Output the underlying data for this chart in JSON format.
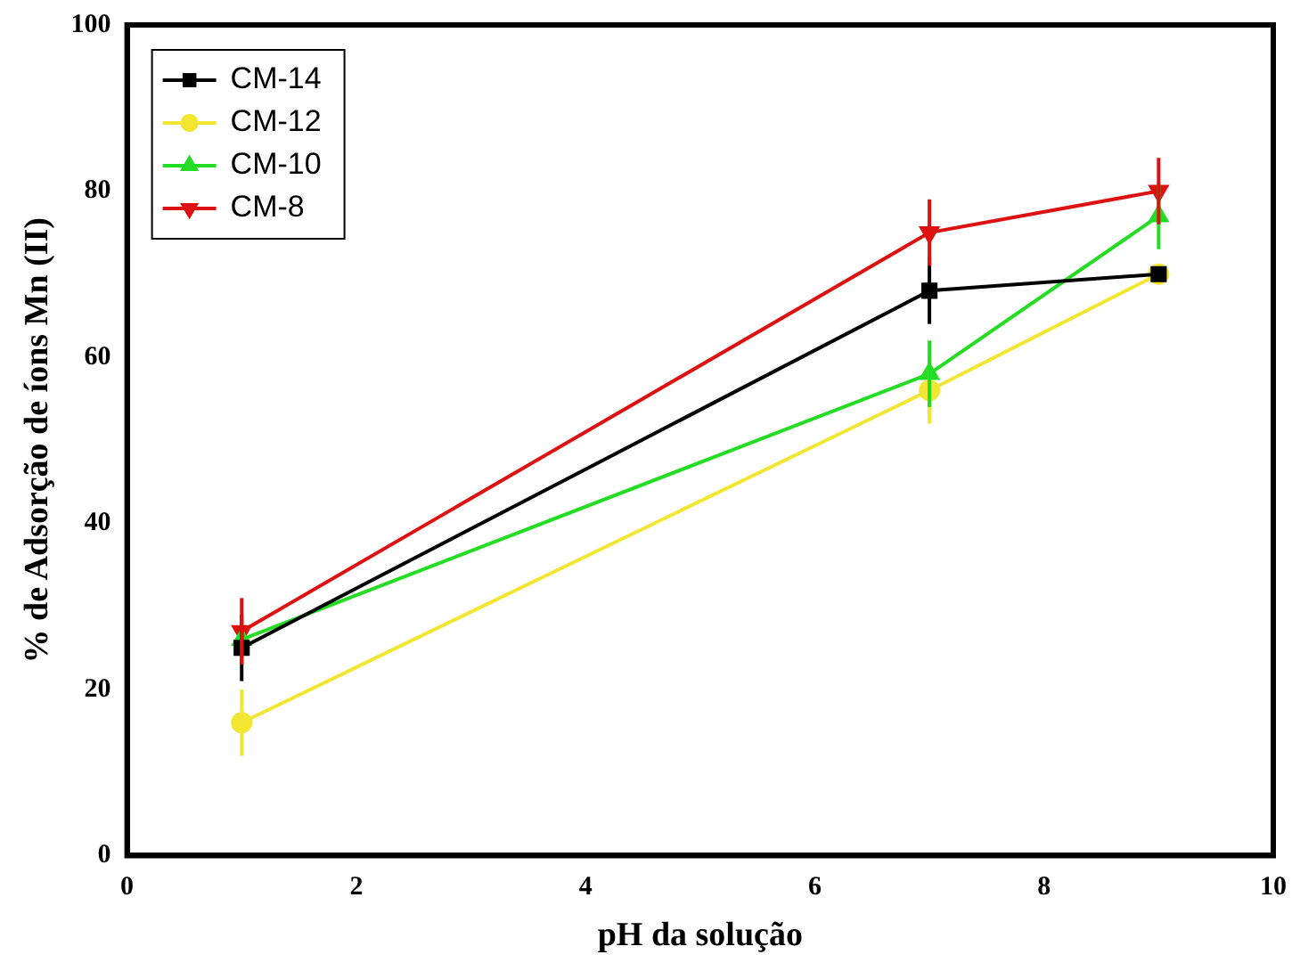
{
  "chart_data": {
    "type": "line",
    "xlabel": "pH da solução",
    "ylabel": "% de Adsorção de íons Mn (II)",
    "x": [
      1,
      7,
      9
    ],
    "xlim": [
      0,
      10
    ],
    "xticks": [
      0,
      2,
      4,
      6,
      8,
      10
    ],
    "ylim": [
      0,
      100
    ],
    "yticks": [
      0,
      20,
      40,
      60,
      80,
      100
    ],
    "grid": false,
    "legend": "top left",
    "line_style": "solid",
    "series": [
      {
        "name": "CM-14",
        "color": "#000000",
        "marker": "square",
        "values": [
          25,
          68,
          70
        ],
        "errors": [
          4,
          4,
          null
        ]
      },
      {
        "name": "CM-12",
        "color": "#f2e630",
        "marker": "circle",
        "values": [
          16,
          56,
          70
        ],
        "errors": [
          4,
          4,
          null
        ]
      },
      {
        "name": "CM-10",
        "color": "#22dd22",
        "marker": "triangle",
        "values": [
          26,
          58,
          77
        ],
        "errors": [
          null,
          4,
          4
        ]
      },
      {
        "name": "CM-8",
        "color": "#dd1111",
        "marker": "triangle-down",
        "values": [
          27,
          75,
          80
        ],
        "errors": [
          4,
          4,
          4
        ]
      }
    ]
  }
}
